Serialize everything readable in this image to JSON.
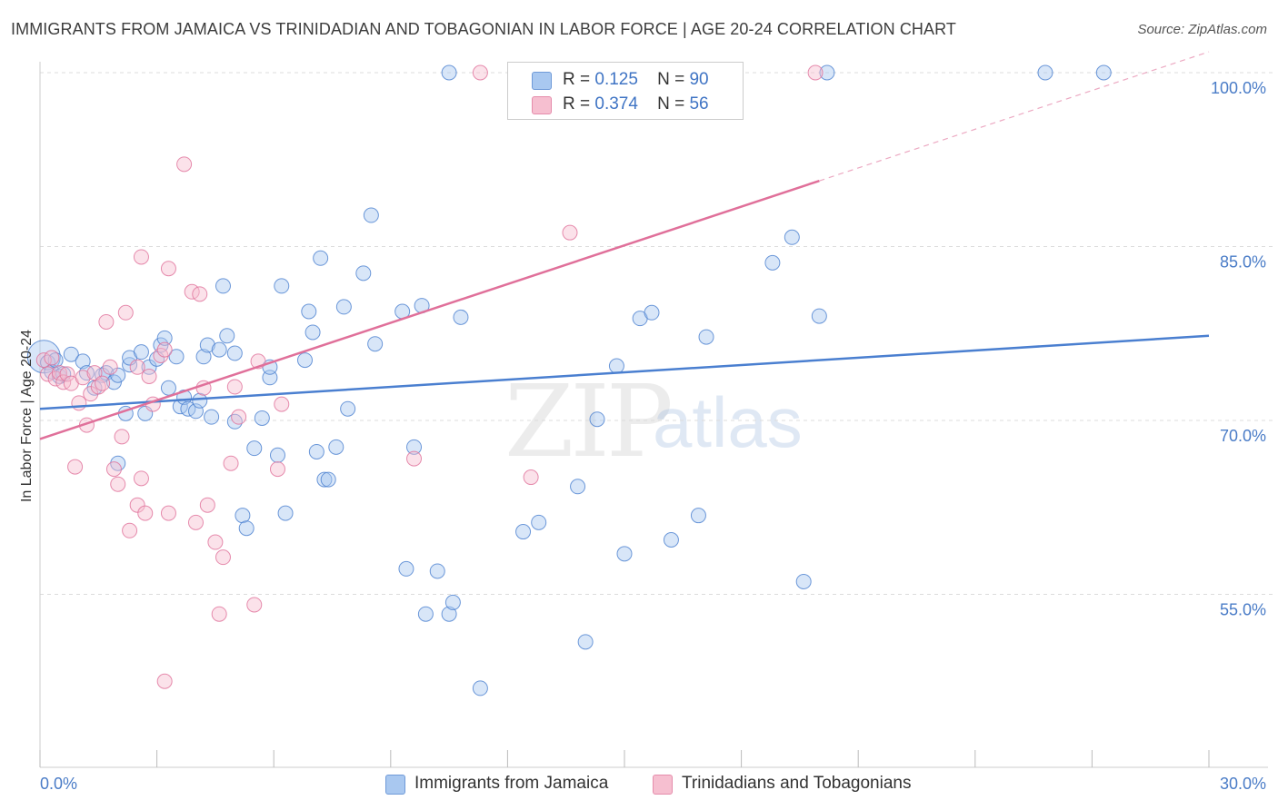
{
  "title": "IMMIGRANTS FROM JAMAICA VS TRINIDADIAN AND TOBAGONIAN IN LABOR FORCE | AGE 20-24 CORRELATION CHART",
  "source": "Source: ZipAtlas.com",
  "watermark": {
    "zip": "ZIP",
    "atlas": "atlas"
  },
  "legend": {
    "rows": [
      {
        "r_label": "R =",
        "r_value": "0.125",
        "n_label": "N =",
        "n_value": "90",
        "color": "#a9c8f0"
      },
      {
        "r_label": "R =",
        "r_value": "0.374",
        "n_label": "N =",
        "n_value": "56",
        "color": "#f6bfd0"
      }
    ]
  },
  "bottom_legend": [
    {
      "label": "Immigrants from Jamaica",
      "color": "#a9c8f0"
    },
    {
      "label": "Trinidadians and Tobagonians",
      "color": "#f6bfd0"
    }
  ],
  "chart_data": {
    "type": "scatter",
    "ylabel": "In Labor Force | Age 20-24",
    "xlim": [
      0,
      30
    ],
    "ylim": [
      40,
      100
    ],
    "x_tick_labels": [
      "0.0%",
      "30.0%"
    ],
    "y_tick_labels": [
      {
        "value": 100,
        "label": "100.0%"
      },
      {
        "value": 85,
        "label": "85.0%"
      },
      {
        "value": 70,
        "label": "70.0%"
      },
      {
        "value": 55,
        "label": "55.0%"
      }
    ],
    "grid": true,
    "series": [
      {
        "name": "Immigrants from Jamaica",
        "color": "#4a7fd0",
        "fill": "rgba(169,200,240,0.45)",
        "trend": {
          "x1": 0,
          "y1": 71.0,
          "x2": 30,
          "y2": 77.3,
          "dashed_from": null
        },
        "points": [
          [
            0.1,
            75.5
          ],
          [
            0.2,
            75.0
          ],
          [
            0.3,
            74.2
          ],
          [
            0.4,
            75.2
          ],
          [
            0.5,
            73.8
          ],
          [
            0.6,
            74.0
          ],
          [
            0.8,
            75.7
          ],
          [
            1.1,
            75.1
          ],
          [
            1.2,
            74.1
          ],
          [
            1.4,
            72.8
          ],
          [
            1.6,
            73.9
          ],
          [
            1.7,
            74.1
          ],
          [
            1.9,
            73.3
          ],
          [
            2.0,
            66.3
          ],
          [
            2.0,
            73.9
          ],
          [
            2.2,
            70.6
          ],
          [
            2.3,
            74.8
          ],
          [
            2.3,
            75.4
          ],
          [
            2.6,
            75.9
          ],
          [
            2.7,
            70.6
          ],
          [
            2.8,
            74.6
          ],
          [
            3.0,
            75.3
          ],
          [
            3.1,
            76.5
          ],
          [
            3.2,
            77.1
          ],
          [
            3.3,
            72.8
          ],
          [
            3.5,
            75.5
          ],
          [
            3.6,
            71.2
          ],
          [
            3.7,
            72.0
          ],
          [
            3.8,
            71.0
          ],
          [
            4.0,
            70.8
          ],
          [
            4.1,
            71.7
          ],
          [
            4.2,
            75.5
          ],
          [
            4.3,
            76.5
          ],
          [
            4.4,
            70.3
          ],
          [
            4.6,
            76.1
          ],
          [
            4.7,
            81.6
          ],
          [
            4.8,
            77.3
          ],
          [
            5.0,
            75.8
          ],
          [
            5.0,
            69.9
          ],
          [
            5.2,
            61.8
          ],
          [
            5.3,
            60.7
          ],
          [
            5.5,
            67.6
          ],
          [
            5.7,
            70.2
          ],
          [
            5.9,
            73.7
          ],
          [
            5.9,
            74.6
          ],
          [
            6.1,
            67.0
          ],
          [
            6.2,
            81.6
          ],
          [
            6.3,
            62.0
          ],
          [
            6.8,
            75.2
          ],
          [
            6.9,
            79.4
          ],
          [
            7.0,
            77.6
          ],
          [
            7.1,
            67.3
          ],
          [
            7.2,
            84.0
          ],
          [
            7.3,
            64.9
          ],
          [
            7.4,
            64.9
          ],
          [
            7.6,
            67.7
          ],
          [
            7.8,
            79.8
          ],
          [
            7.9,
            71.0
          ],
          [
            8.3,
            82.7
          ],
          [
            8.5,
            87.7
          ],
          [
            8.6,
            76.6
          ],
          [
            9.3,
            79.4
          ],
          [
            9.4,
            57.2
          ],
          [
            9.6,
            67.7
          ],
          [
            9.8,
            79.9
          ],
          [
            9.9,
            53.3
          ],
          [
            10.2,
            57.0
          ],
          [
            10.5,
            53.3
          ],
          [
            10.6,
            54.3
          ],
          [
            10.8,
            78.9
          ],
          [
            11.3,
            46.9
          ],
          [
            12.4,
            60.4
          ],
          [
            12.8,
            61.2
          ],
          [
            13.8,
            64.3
          ],
          [
            14.0,
            50.9
          ],
          [
            14.3,
            70.1
          ],
          [
            14.8,
            74.7
          ],
          [
            15.0,
            58.5
          ],
          [
            15.4,
            78.8
          ],
          [
            15.7,
            79.3
          ],
          [
            16.2,
            59.7
          ],
          [
            16.9,
            61.8
          ],
          [
            17.1,
            77.2
          ],
          [
            18.8,
            83.6
          ],
          [
            19.3,
            85.8
          ],
          [
            19.6,
            56.1
          ],
          [
            20.0,
            79.0
          ],
          [
            10.5,
            100.0
          ],
          [
            20.2,
            100.0
          ],
          [
            25.8,
            100.0
          ],
          [
            27.3,
            100.0
          ]
        ]
      },
      {
        "name": "Trinidadians and Tobagonians",
        "color": "#e0709a",
        "fill": "rgba(246,191,208,0.45)",
        "trend": {
          "x1": 0,
          "y1": 68.4,
          "x2": 30,
          "y2": 101.8,
          "dashed_from": 20.0
        },
        "points": [
          [
            0.1,
            75.2
          ],
          [
            0.2,
            74.0
          ],
          [
            0.3,
            75.4
          ],
          [
            0.4,
            73.6
          ],
          [
            0.5,
            74.1
          ],
          [
            0.6,
            73.3
          ],
          [
            0.7,
            74.0
          ],
          [
            0.8,
            73.2
          ],
          [
            0.9,
            66.0
          ],
          [
            1.0,
            71.5
          ],
          [
            1.1,
            73.7
          ],
          [
            1.2,
            69.6
          ],
          [
            1.3,
            72.3
          ],
          [
            1.4,
            74.1
          ],
          [
            1.5,
            72.9
          ],
          [
            1.6,
            73.2
          ],
          [
            1.7,
            78.5
          ],
          [
            1.8,
            74.6
          ],
          [
            1.9,
            65.8
          ],
          [
            2.0,
            64.5
          ],
          [
            2.1,
            68.6
          ],
          [
            2.2,
            79.3
          ],
          [
            2.3,
            60.5
          ],
          [
            2.5,
            74.6
          ],
          [
            2.5,
            62.7
          ],
          [
            2.6,
            65.0
          ],
          [
            2.6,
            84.1
          ],
          [
            2.7,
            62.0
          ],
          [
            2.8,
            73.8
          ],
          [
            2.9,
            71.4
          ],
          [
            3.1,
            75.6
          ],
          [
            3.2,
            47.5
          ],
          [
            3.2,
            76.1
          ],
          [
            3.3,
            83.1
          ],
          [
            3.3,
            62.0
          ],
          [
            3.7,
            92.1
          ],
          [
            3.9,
            81.1
          ],
          [
            4.0,
            61.2
          ],
          [
            4.1,
            80.9
          ],
          [
            4.2,
            72.8
          ],
          [
            4.3,
            62.7
          ],
          [
            4.5,
            59.5
          ],
          [
            4.6,
            53.3
          ],
          [
            4.7,
            58.2
          ],
          [
            4.9,
            66.3
          ],
          [
            5.0,
            72.9
          ],
          [
            5.1,
            70.3
          ],
          [
            5.5,
            54.1
          ],
          [
            5.6,
            75.1
          ],
          [
            6.1,
            65.8
          ],
          [
            6.2,
            71.4
          ],
          [
            11.3,
            100.0
          ],
          [
            9.6,
            66.7
          ],
          [
            12.6,
            65.1
          ],
          [
            13.6,
            86.2
          ],
          [
            19.9,
            100.0
          ]
        ]
      }
    ]
  }
}
